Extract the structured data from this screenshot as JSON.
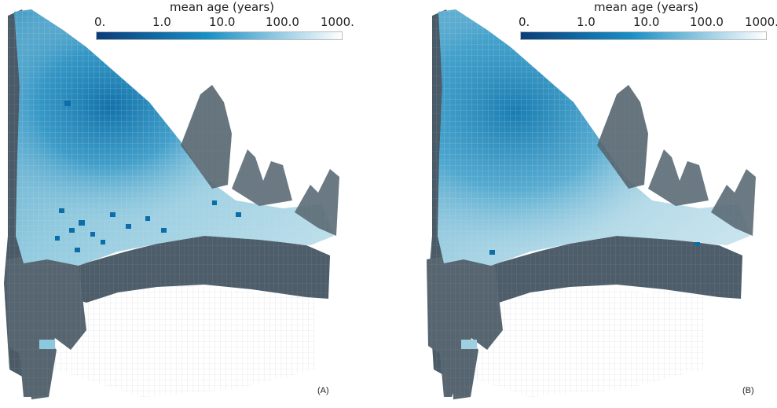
{
  "colorbar": {
    "title": "mean age (years)",
    "ticks": [
      "0.",
      "1.0",
      "10.0",
      "100.0",
      "1000."
    ],
    "color_low": "#0a3d7a",
    "color_mid": "#1a8fc4",
    "color_high": "#ffffff"
  },
  "panels": [
    {
      "id": "A",
      "label": "(A)"
    },
    {
      "id": "B",
      "label": "(B)"
    }
  ],
  "colors": {
    "wall": "#4a5a66",
    "wall_light": "#6a7a86",
    "mesh": "#cdd3d8",
    "surface_light": "#b8dce8",
    "surface_deep": "#0c6ea8"
  }
}
